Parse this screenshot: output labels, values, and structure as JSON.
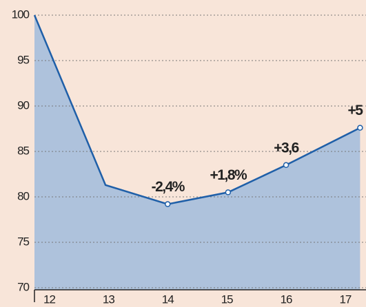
{
  "chart_data": {
    "type": "area",
    "x": [
      11.75,
      12.95,
      14,
      15.02,
      16,
      17.25
    ],
    "values": [
      100,
      81.3,
      79.2,
      80.5,
      83.5,
      87.6
    ],
    "point_labels": [
      null,
      null,
      "-2,4%",
      "+1,8%",
      "+3,6",
      "+5"
    ],
    "color": "#1f5fa8",
    "fill": "#aec2dc",
    "xlim": [
      11.75,
      17.35
    ],
    "xticks": [
      12,
      13,
      14,
      15,
      16,
      17
    ],
    "ylim": [
      70,
      100
    ],
    "yticks": [
      70,
      75,
      80,
      85,
      90,
      95,
      100
    ],
    "grid": true
  }
}
